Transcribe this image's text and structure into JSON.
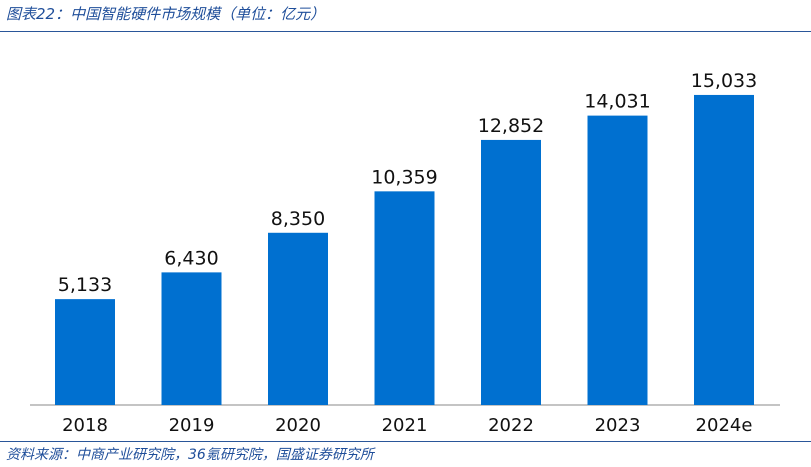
{
  "chart_data": {
    "type": "bar",
    "title": "图表22：中国智能硬件市场规模（单位：亿元）",
    "categories": [
      "2018",
      "2019",
      "2020",
      "2021",
      "2022",
      "2023",
      "2024e"
    ],
    "values": [
      5133,
      6430,
      8350,
      10359,
      12852,
      14031,
      15033
    ],
    "value_labels": [
      "5,133",
      "6,430",
      "8,350",
      "10,359",
      "12,852",
      "14,031",
      "15,033"
    ],
    "xlabel": "",
    "ylabel": "",
    "ylim": [
      0,
      16000
    ],
    "grid": false,
    "colors": {
      "bar": "#0070d0",
      "title": "#1f4e9a",
      "rule": "#2a5699"
    }
  },
  "source": "资料来源：中商产业研究院，36氪研究院，国盛证券研究所"
}
